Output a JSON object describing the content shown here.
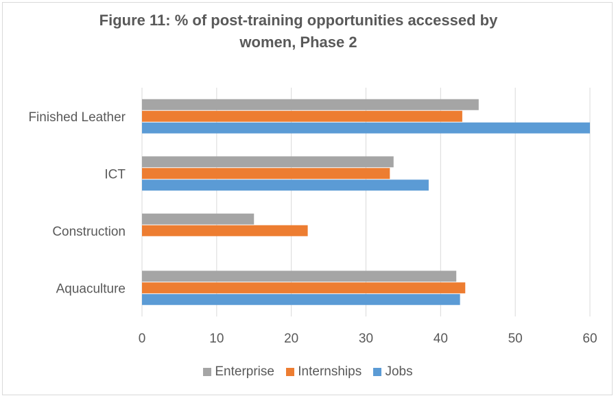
{
  "chart_data": {
    "type": "bar",
    "orientation": "horizontal",
    "title": "Figure 11: % of post-training opportunities accessed by women, Phase 2",
    "title_lines": [
      "Figure 11: % of post-training opportunities accessed by",
      "women, Phase 2"
    ],
    "categories": [
      "Finished Leather",
      "ICT",
      "Construction",
      "Aquaculture"
    ],
    "series": [
      {
        "name": "Enterprise",
        "color": "#a5a5a5",
        "values": [
          45.1,
          33.7,
          15.0,
          42.1
        ]
      },
      {
        "name": "Internships",
        "color": "#ed7d31",
        "values": [
          42.9,
          33.2,
          22.2,
          43.3
        ]
      },
      {
        "name": "Jobs",
        "color": "#5b9bd5",
        "values": [
          60.0,
          38.4,
          0,
          42.6
        ]
      }
    ],
    "xlim": [
      0,
      60
    ],
    "xticks": [
      "0",
      "10",
      "20",
      "30",
      "40",
      "50",
      "60"
    ],
    "grid": "vertical",
    "legend_position": "bottom"
  }
}
